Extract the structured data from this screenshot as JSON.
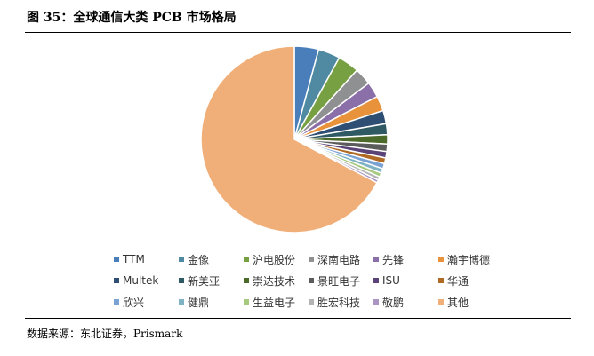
{
  "figure": {
    "title": "图 35：全球通信大类 PCB 市场格局",
    "source": "数据来源：东北证券，Prismark"
  },
  "chart_data": {
    "type": "pie",
    "title": "",
    "slices": [
      {
        "name": "TTM",
        "value": 4.2,
        "color": "#4a7ebb"
      },
      {
        "name": "金像",
        "value": 3.8,
        "color": "#4f8aa2"
      },
      {
        "name": "沪电股份",
        "value": 3.7,
        "color": "#77a043"
      },
      {
        "name": "深南电路",
        "value": 3.0,
        "color": "#8f9092"
      },
      {
        "name": "先锋",
        "value": 2.7,
        "color": "#8a6fa8"
      },
      {
        "name": "瀚宇博德",
        "value": 2.6,
        "color": "#e8923c"
      },
      {
        "name": "Multek",
        "value": 2.3,
        "color": "#2e4f73"
      },
      {
        "name": "新美亚",
        "value": 1.9,
        "color": "#2f5963"
      },
      {
        "name": "崇达技术",
        "value": 1.6,
        "color": "#4c6a2a"
      },
      {
        "name": "景旺电子",
        "value": 1.3,
        "color": "#5b5b5b"
      },
      {
        "name": "ISU",
        "value": 1.1,
        "color": "#5a4377"
      },
      {
        "name": "华通",
        "value": 1.0,
        "color": "#b06a24"
      },
      {
        "name": "欣兴",
        "value": 0.9,
        "color": "#7aa3d4"
      },
      {
        "name": "健鼎",
        "value": 0.8,
        "color": "#7fb3c4"
      },
      {
        "name": "生益电子",
        "value": 0.7,
        "color": "#a7c97e"
      },
      {
        "name": "胜宏科技",
        "value": 0.6,
        "color": "#b3b3b3"
      },
      {
        "name": "敬鹏",
        "value": 0.5,
        "color": "#a994c4"
      },
      {
        "name": "其他",
        "value": 67.3,
        "color": "#f0ae78"
      }
    ],
    "legend": "bottom"
  }
}
